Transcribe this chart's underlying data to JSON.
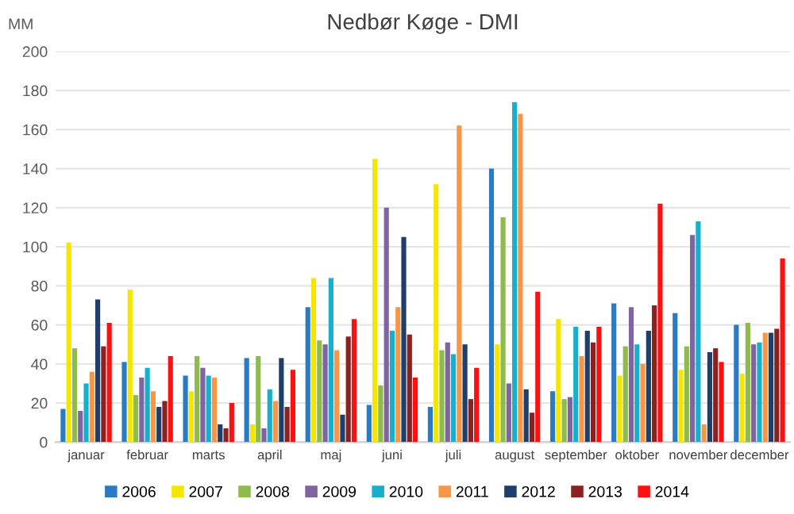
{
  "chart_data": {
    "type": "bar",
    "title": "Nedbør Køge - DMI",
    "ylabel": "MM",
    "categories": [
      "januar",
      "februar",
      "marts",
      "april",
      "maj",
      "juni",
      "juli",
      "august",
      "september",
      "oktober",
      "november",
      "december"
    ],
    "series": [
      {
        "name": "2006",
        "color": "#2a7bc4",
        "values": [
          17,
          41,
          34,
          43,
          69,
          19,
          18,
          140,
          26,
          71,
          66,
          60
        ]
      },
      {
        "name": "2007",
        "color": "#f5e600",
        "values": [
          102,
          78,
          26,
          9,
          84,
          145,
          132,
          50,
          63,
          34,
          37,
          35
        ]
      },
      {
        "name": "2008",
        "color": "#8dbb4c",
        "values": [
          48,
          24,
          44,
          44,
          52,
          29,
          47,
          115,
          22,
          49,
          49,
          61
        ]
      },
      {
        "name": "2009",
        "color": "#8064a2",
        "values": [
          16,
          33,
          38,
          7,
          50,
          120,
          51,
          30,
          23,
          69,
          106,
          50
        ]
      },
      {
        "name": "2010",
        "color": "#17b0cc",
        "values": [
          30,
          38,
          34,
          27,
          84,
          57,
          45,
          174,
          59,
          50,
          113,
          51
        ]
      },
      {
        "name": "2011",
        "color": "#f79646",
        "values": [
          36,
          26,
          33,
          21,
          47,
          69,
          162,
          168,
          44,
          40,
          9,
          56
        ]
      },
      {
        "name": "2012",
        "color": "#1f3f6b",
        "values": [
          73,
          18,
          9,
          43,
          14,
          105,
          50,
          27,
          57,
          57,
          46,
          56
        ]
      },
      {
        "name": "2013",
        "color": "#8b2222",
        "values": [
          49,
          21,
          7,
          18,
          54,
          55,
          22,
          15,
          51,
          70,
          48,
          58
        ]
      },
      {
        "name": "2014",
        "color": "#ff1010",
        "values": [
          61,
          44,
          20,
          37,
          63,
          33,
          38,
          77,
          59,
          122,
          41,
          94
        ]
      }
    ],
    "ylim": [
      0,
      200
    ],
    "yticks": [
      0,
      20,
      40,
      60,
      80,
      100,
      120,
      140,
      160,
      180,
      200
    ],
    "grid": "y",
    "legend": "bottom"
  }
}
